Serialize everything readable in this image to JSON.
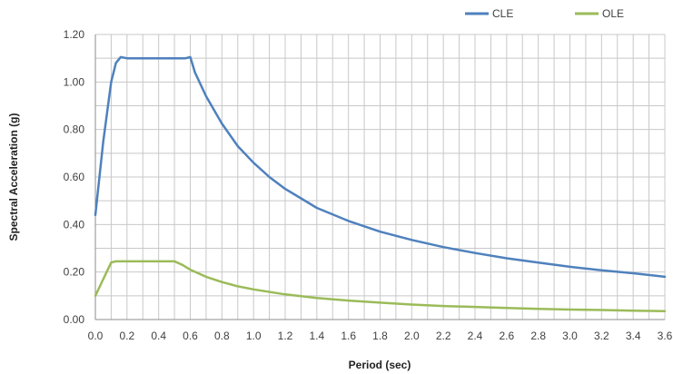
{
  "chart_data": {
    "type": "line",
    "title": "",
    "xlabel": "Period (sec)",
    "ylabel": "Spectral Acceleration (g)",
    "xlim": [
      0,
      3.6
    ],
    "ylim": [
      0,
      1.2
    ],
    "x_major_step": 0.2,
    "x_minor_step": 0.1,
    "y_major_step": 0.2,
    "y_minor_step": 0.1,
    "x_tick_labels": [
      "0.0",
      "0.2",
      "0.4",
      "0.6",
      "0.8",
      "1.0",
      "1.2",
      "1.4",
      "1.6",
      "1.8",
      "2.0",
      "2.2",
      "2.4",
      "2.6",
      "2.8",
      "3.0",
      "3.2",
      "3.4",
      "3.6"
    ],
    "y_tick_labels": [
      "0.00",
      "0.20",
      "0.40",
      "0.60",
      "0.80",
      "1.00",
      "1.20"
    ],
    "grid": true,
    "legend_position": "top-right",
    "series": [
      {
        "name": "CLE",
        "color": "#4f81bd",
        "points": [
          [
            0.0,
            0.44
          ],
          [
            0.05,
            0.75
          ],
          [
            0.1,
            1.0
          ],
          [
            0.13,
            1.08
          ],
          [
            0.16,
            1.105
          ],
          [
            0.2,
            1.1
          ],
          [
            0.3,
            1.1
          ],
          [
            0.4,
            1.1
          ],
          [
            0.5,
            1.1
          ],
          [
            0.57,
            1.1
          ],
          [
            0.6,
            1.105
          ],
          [
            0.63,
            1.04
          ],
          [
            0.7,
            0.94
          ],
          [
            0.8,
            0.825
          ],
          [
            0.9,
            0.73
          ],
          [
            1.0,
            0.66
          ],
          [
            1.1,
            0.6
          ],
          [
            1.2,
            0.55
          ],
          [
            1.3,
            0.51
          ],
          [
            1.4,
            0.47
          ],
          [
            1.6,
            0.415
          ],
          [
            1.8,
            0.37
          ],
          [
            2.0,
            0.335
          ],
          [
            2.2,
            0.305
          ],
          [
            2.4,
            0.28
          ],
          [
            2.6,
            0.258
          ],
          [
            2.8,
            0.24
          ],
          [
            3.0,
            0.222
          ],
          [
            3.2,
            0.207
          ],
          [
            3.4,
            0.195
          ],
          [
            3.6,
            0.18
          ]
        ]
      },
      {
        "name": "OLE",
        "color": "#9bbb59",
        "points": [
          [
            0.0,
            0.1
          ],
          [
            0.05,
            0.17
          ],
          [
            0.1,
            0.24
          ],
          [
            0.13,
            0.245
          ],
          [
            0.2,
            0.245
          ],
          [
            0.3,
            0.245
          ],
          [
            0.4,
            0.245
          ],
          [
            0.5,
            0.245
          ],
          [
            0.55,
            0.23
          ],
          [
            0.6,
            0.21
          ],
          [
            0.7,
            0.18
          ],
          [
            0.8,
            0.158
          ],
          [
            0.9,
            0.14
          ],
          [
            1.0,
            0.127
          ],
          [
            1.2,
            0.106
          ],
          [
            1.4,
            0.091
          ],
          [
            1.6,
            0.08
          ],
          [
            1.8,
            0.071
          ],
          [
            2.0,
            0.063
          ],
          [
            2.2,
            0.057
          ],
          [
            2.4,
            0.053
          ],
          [
            2.6,
            0.049
          ],
          [
            2.8,
            0.045
          ],
          [
            3.0,
            0.042
          ],
          [
            3.2,
            0.04
          ],
          [
            3.4,
            0.037
          ],
          [
            3.6,
            0.035
          ]
        ]
      }
    ]
  }
}
